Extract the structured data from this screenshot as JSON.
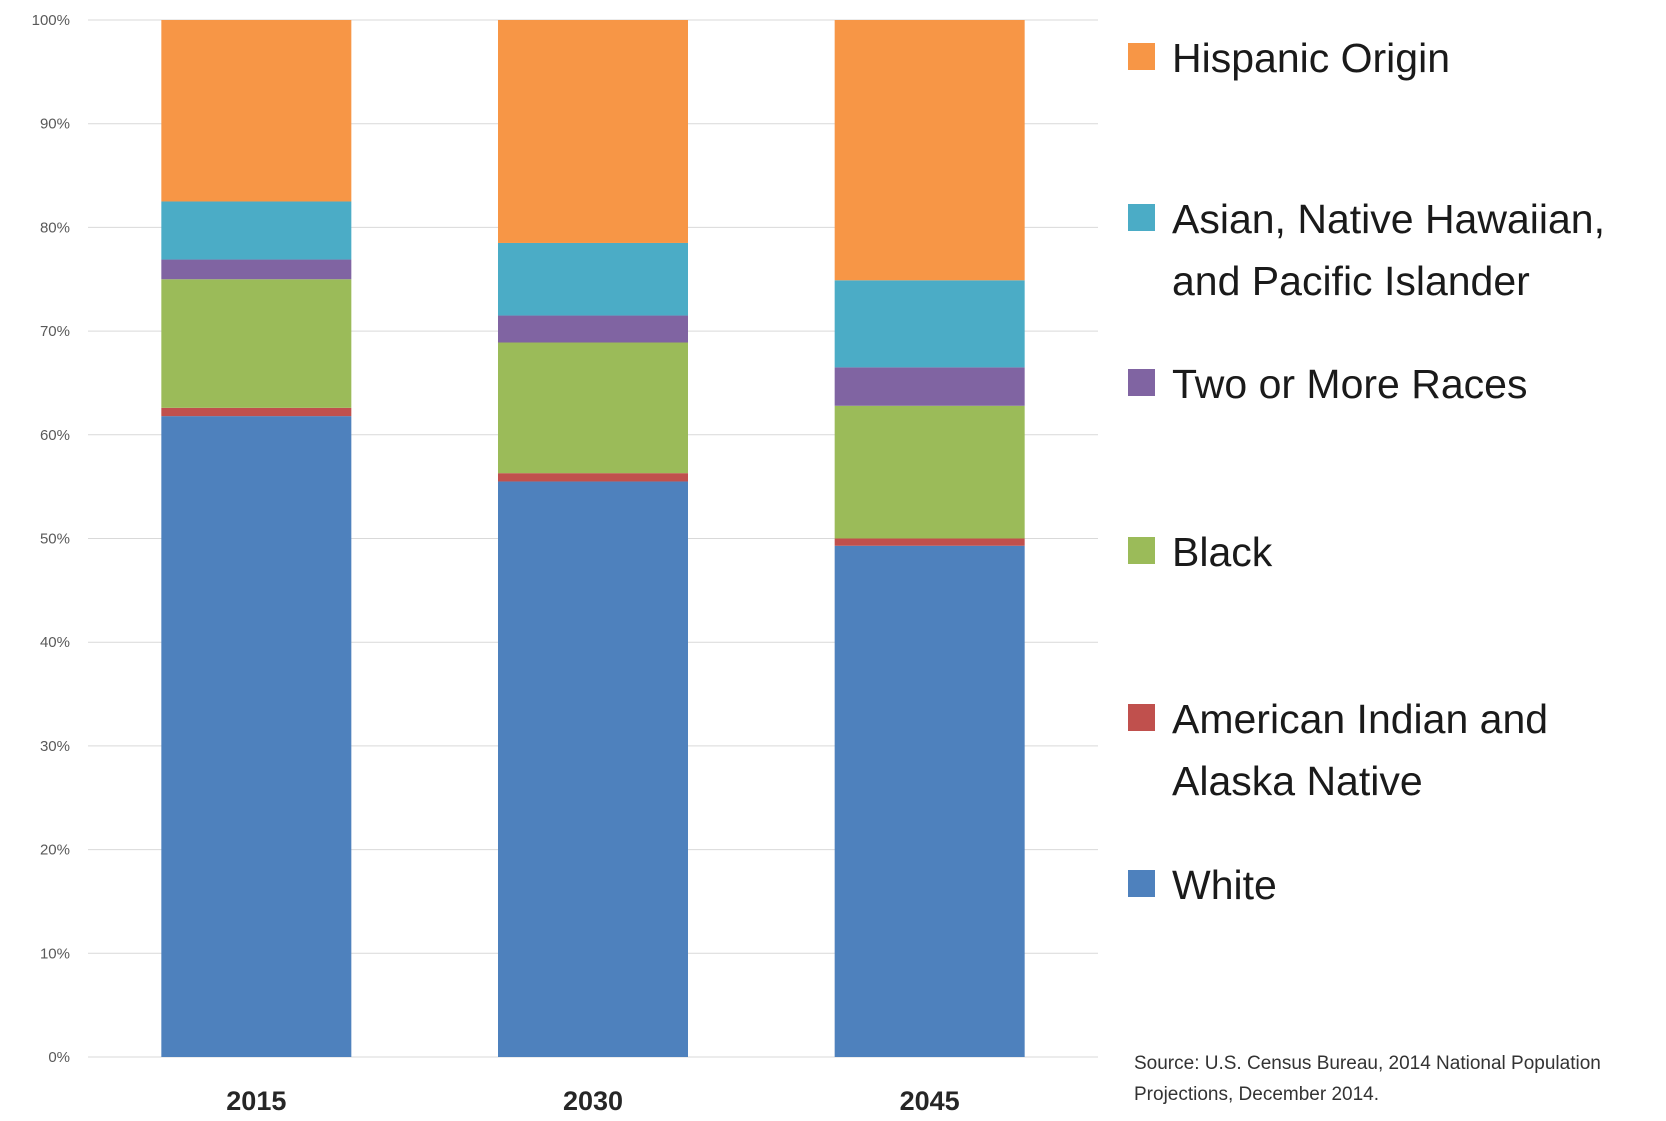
{
  "chart_data": {
    "type": "bar",
    "stacked": true,
    "categories": [
      "2015",
      "2030",
      "2045"
    ],
    "ylim": [
      0,
      100
    ],
    "y_ticks": [
      "0%",
      "10%",
      "20%",
      "30%",
      "40%",
      "50%",
      "60%",
      "70%",
      "80%",
      "90%",
      "100%"
    ],
    "grid": true,
    "legend_position": "right",
    "xlabel": "",
    "ylabel": "",
    "series": [
      {
        "name": "White",
        "color": "#4e81bd",
        "values": [
          61.8,
          55.5,
          49.3
        ]
      },
      {
        "name": "American Indian and Alaska Native",
        "color": "#c0504d",
        "values": [
          0.8,
          0.8,
          0.7
        ]
      },
      {
        "name": "Black",
        "color": "#9bbb59",
        "values": [
          12.4,
          12.6,
          12.8
        ]
      },
      {
        "name": "Two or More Races",
        "color": "#8064a2",
        "values": [
          1.9,
          2.6,
          3.7
        ]
      },
      {
        "name": "Asian, Native Hawaiian, and Pacific Islander",
        "color": "#4bacc6",
        "values": [
          5.6,
          7.0,
          8.4
        ]
      },
      {
        "name": "Hispanic Origin",
        "color": "#f79646",
        "values": [
          17.5,
          21.5,
          25.1
        ]
      }
    ],
    "legend": [
      {
        "label": "Hispanic Origin",
        "color": "#f79646"
      },
      {
        "label": "Asian, Native Hawaiian, and Pacific Islander",
        "color": "#4bacc6"
      },
      {
        "label": "Two or More Races",
        "color": "#8064a2"
      },
      {
        "label": "Black",
        "color": "#9bbb59"
      },
      {
        "label": "American Indian and Alaska Native",
        "color": "#c0504d"
      },
      {
        "label": "White",
        "color": "#4e81bd"
      }
    ],
    "source": "Source: U.S. Census Bureau, 2014 National Population Projections, December 2014."
  }
}
